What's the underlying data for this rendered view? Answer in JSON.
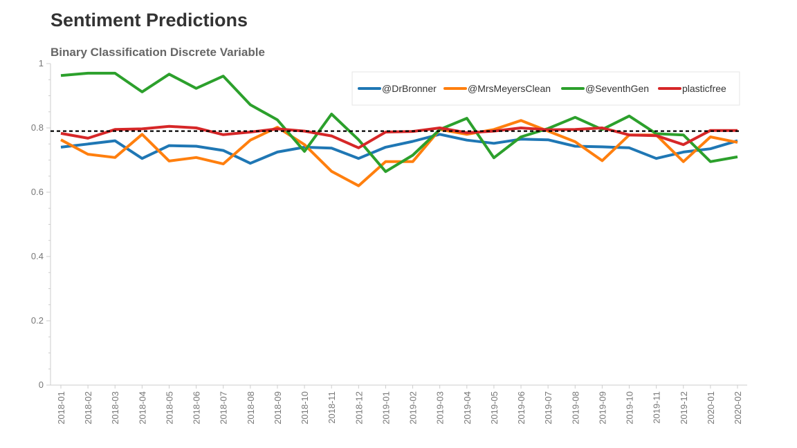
{
  "chart_data": {
    "type": "line",
    "title": "Sentiment Predictions",
    "subtitle": "Binary Classification Discrete Variable",
    "xlabel": "",
    "ylabel": "",
    "ylim": [
      0,
      1
    ],
    "yticks": [
      "0",
      "0.2",
      "0.4",
      "0.6",
      "0.8",
      "1"
    ],
    "legend_position": "top-right",
    "grid": false,
    "reference_line": {
      "y": 0.79,
      "style": "dashed",
      "color": "#000000"
    },
    "categories": [
      "2018-01",
      "2018-02",
      "2018-03",
      "2018-04",
      "2018-05",
      "2018-06",
      "2018-07",
      "2018-08",
      "2018-09",
      "2018-10",
      "2018-11",
      "2018-12",
      "2019-01",
      "2019-02",
      "2019-03",
      "2019-04",
      "2019-05",
      "2019-06",
      "2019-07",
      "2019-08",
      "2019-09",
      "2019-10",
      "2019-11",
      "2019-12",
      "2020-01",
      "2020-02"
    ],
    "series": [
      {
        "name": "@DrBronner",
        "color": "#1f77b4",
        "values": [
          0.74,
          0.75,
          0.76,
          0.705,
          0.745,
          0.743,
          0.73,
          0.69,
          0.725,
          0.74,
          0.737,
          0.705,
          0.74,
          0.758,
          0.78,
          0.762,
          0.752,
          0.765,
          0.763,
          0.743,
          0.741,
          0.738,
          0.705,
          0.725,
          0.735,
          0.76
        ]
      },
      {
        "name": "@MrsMeyersClean",
        "color": "#ff7f0e",
        "values": [
          0.763,
          0.718,
          0.708,
          0.78,
          0.697,
          0.708,
          0.688,
          0.762,
          0.802,
          0.748,
          0.665,
          0.62,
          0.695,
          0.695,
          0.795,
          0.78,
          0.795,
          0.823,
          0.79,
          0.757,
          0.698,
          0.778,
          0.778,
          0.695,
          0.772,
          0.755
        ]
      },
      {
        "name": "@SeventhGen",
        "color": "#2ca02c",
        "values": [
          0.963,
          0.97,
          0.97,
          0.912,
          0.967,
          0.923,
          0.961,
          0.872,
          0.825,
          0.727,
          0.843,
          0.763,
          0.664,
          0.715,
          0.795,
          0.83,
          0.707,
          0.772,
          0.798,
          0.833,
          0.795,
          0.837,
          0.782,
          0.778,
          0.695,
          0.71
        ]
      },
      {
        "name": "plasticfree",
        "color": "#d62728",
        "values": [
          0.783,
          0.768,
          0.795,
          0.797,
          0.805,
          0.8,
          0.779,
          0.787,
          0.797,
          0.79,
          0.775,
          0.738,
          0.787,
          0.789,
          0.8,
          0.785,
          0.79,
          0.8,
          0.794,
          0.795,
          0.8,
          0.778,
          0.776,
          0.748,
          0.792,
          0.792
        ]
      }
    ]
  }
}
